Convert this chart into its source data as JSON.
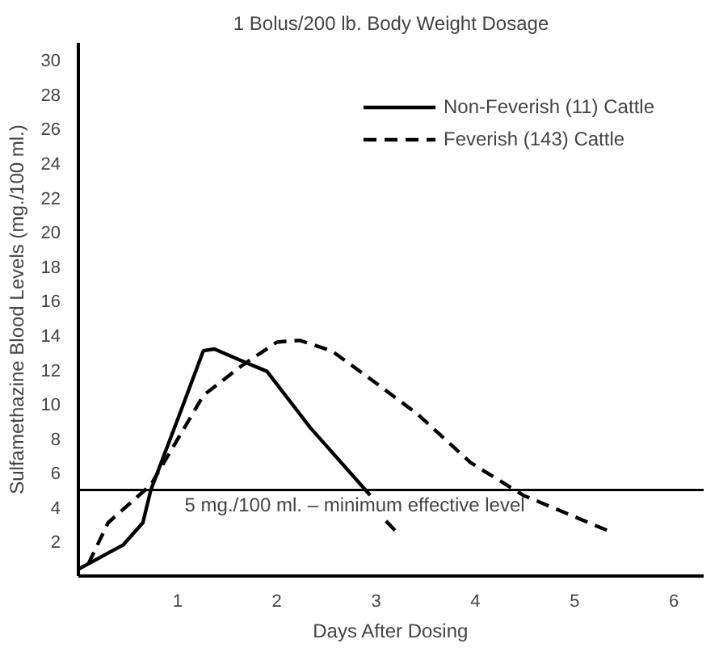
{
  "chart_data": {
    "type": "line",
    "title": "1 Bolus/200 lb. Body Weight Dosage",
    "xlabel": "Days After Dosing",
    "ylabel": "Sulfamethazine Blood Levels (mg./100 ml.)",
    "xlim": [
      0,
      6.3
    ],
    "ylim": [
      0,
      31
    ],
    "xticks": [
      1,
      2,
      3,
      4,
      5,
      6
    ],
    "yticks": [
      2,
      4,
      6,
      8,
      10,
      12,
      14,
      16,
      18,
      20,
      22,
      24,
      26,
      28,
      30
    ],
    "grid": false,
    "legend": "top right",
    "marker": "none",
    "series": [
      {
        "name": "Non-Feverish (11) Cattle",
        "color": "#000000",
        "line_style": "solid",
        "x": [
          0,
          0.45,
          0.65,
          0.73,
          1.0,
          1.26,
          1.37,
          1.69,
          1.9,
          2.34,
          2.94
        ],
        "values": [
          0.4,
          1.8,
          3.1,
          5.0,
          9.1,
          13.1,
          13.2,
          12.4,
          11.9,
          8.6,
          4.7
        ]
      },
      {
        "name": "Feverish (143) Cattle",
        "color": "#000000",
        "line_style": "dashed",
        "x": [
          0.1,
          0.3,
          0.73,
          1.26,
          1.64,
          2.0,
          2.23,
          2.55,
          2.98,
          3.42,
          3.95,
          4.48,
          5.35
        ],
        "values": [
          0.7,
          3.1,
          5.3,
          10.5,
          12.2,
          13.6,
          13.7,
          13.1,
          11.3,
          9.4,
          6.6,
          4.7,
          2.6
        ]
      },
      {
        "color": "#000000",
        "line_style": "dashed",
        "x": [
          3.1,
          3.2
        ],
        "values": [
          3.2,
          2.6
        ]
      }
    ],
    "ref_lines": [
      {
        "axis": "y",
        "value": 5,
        "label": "5 mg./100 ml. – minimum effective level",
        "color": "#000000"
      }
    ]
  }
}
